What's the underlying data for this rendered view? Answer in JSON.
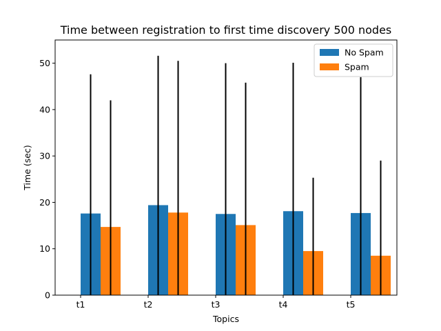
{
  "chart_data": {
    "type": "bar",
    "title": "Time between registration to first time discovery 500 nodes",
    "xlabel": "Topics",
    "ylabel": "Time (sec)",
    "categories": [
      "t1",
      "t2",
      "t3",
      "t4",
      "t5"
    ],
    "ylim": [
      0,
      55
    ],
    "yticks": [
      0,
      10,
      20,
      30,
      40,
      50
    ],
    "grid": false,
    "legend_position": "top-right",
    "series": [
      {
        "name": "No Spam",
        "color": "#1f77b4",
        "values": [
          17.6,
          19.4,
          17.5,
          18.1,
          17.7
        ],
        "error_top": [
          47.6,
          51.6,
          50.0,
          50.1,
          47.0
        ]
      },
      {
        "name": "Spam",
        "color": "#ff7f0e",
        "values": [
          14.7,
          17.8,
          15.1,
          9.5,
          8.5
        ],
        "error_top": [
          42.0,
          50.5,
          45.8,
          25.3,
          29.0
        ]
      }
    ]
  }
}
